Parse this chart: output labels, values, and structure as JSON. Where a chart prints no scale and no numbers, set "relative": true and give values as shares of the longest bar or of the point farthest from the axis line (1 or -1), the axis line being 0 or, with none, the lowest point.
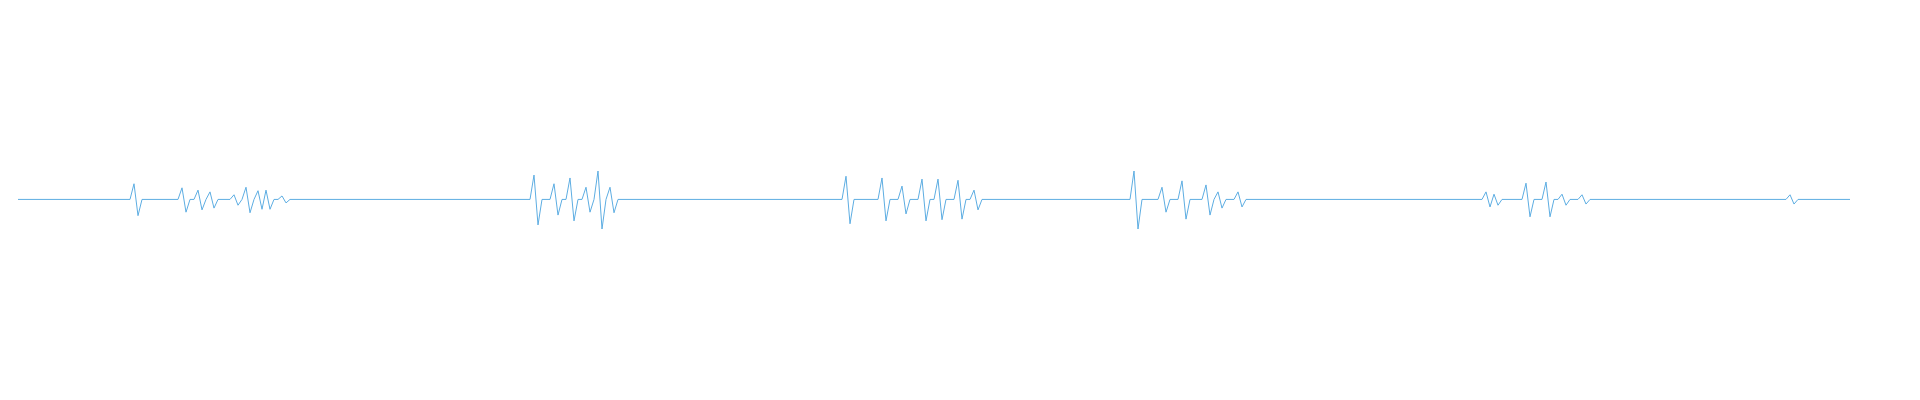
{
  "chart_data": {
    "type": "line",
    "relative": true,
    "marker": "none",
    "categories": [
      null,
      null,
      null,
      null,
      null,
      null,
      null,
      null,
      null,
      null,
      null,
      null,
      null,
      null,
      null,
      null,
      null,
      null,
      null,
      null,
      null,
      null,
      null,
      null,
      null,
      null,
      null,
      null,
      null,
      null,
      null,
      null,
      null,
      null,
      null,
      null,
      null,
      null,
      null,
      null,
      null,
      null,
      null,
      null,
      null,
      null,
      null,
      null,
      null,
      null,
      null,
      null,
      null,
      null,
      null,
      null,
      null,
      null,
      null,
      null,
      null,
      null,
      null,
      null,
      null,
      null,
      null,
      null,
      null,
      null,
      null,
      null,
      null,
      null,
      null,
      null,
      null,
      null,
      null,
      null,
      null,
      null,
      null,
      null,
      null,
      null,
      null,
      null,
      null,
      null,
      null,
      null,
      null,
      null,
      null,
      null,
      null,
      null,
      null,
      null,
      null,
      null,
      null,
      null,
      null,
      null,
      null,
      null,
      null,
      null,
      null,
      null,
      null,
      null,
      null,
      null,
      null,
      null,
      null,
      null,
      null,
      null,
      null,
      null,
      null,
      null,
      null,
      null,
      null,
      null,
      null,
      null,
      null,
      null,
      null,
      null,
      null,
      null,
      null,
      null,
      null,
      null,
      null,
      null,
      null,
      null,
      null,
      null,
      null,
      null,
      null,
      null,
      null,
      null,
      null,
      null,
      null,
      null,
      null,
      null,
      null,
      null,
      null,
      null,
      null,
      null,
      null,
      null,
      null,
      null,
      null,
      null,
      null,
      null,
      null,
      null,
      null,
      null,
      null,
      null,
      null,
      null,
      null,
      null,
      null,
      null,
      null,
      null,
      null,
      null,
      null,
      null,
      null,
      null,
      null,
      null,
      null,
      null,
      null,
      null,
      null,
      null,
      null,
      null,
      null,
      null,
      null,
      null,
      null,
      null,
      null,
      null,
      null,
      null,
      null,
      null,
      null,
      null,
      null,
      null,
      null,
      null,
      null,
      null,
      null,
      null,
      null,
      null,
      null,
      null,
      null,
      null,
      null,
      null,
      null,
      null,
      null,
      null,
      null,
      null,
      null,
      null,
      null,
      null,
      null,
      null,
      null,
      null,
      null,
      null,
      null,
      null,
      null,
      null,
      null,
      null,
      null,
      null,
      null,
      null,
      null,
      null,
      null,
      null,
      null,
      null,
      null,
      null,
      null,
      null,
      null,
      null,
      null,
      null,
      null,
      null,
      null,
      null,
      null,
      null,
      null,
      null,
      null,
      null,
      null,
      null,
      null,
      null,
      null,
      null,
      null,
      null,
      null,
      null,
      null,
      null,
      null,
      null,
      null,
      null,
      null,
      null,
      null,
      null,
      null,
      null,
      null,
      null,
      null,
      null,
      null,
      null,
      null,
      null,
      null,
      null,
      null,
      null,
      null,
      null,
      null,
      null,
      null,
      null,
      null,
      null,
      null,
      null,
      null,
      null,
      null,
      null,
      null,
      null,
      null,
      null,
      null,
      null,
      null,
      null,
      null,
      null,
      null,
      null,
      null,
      null,
      null,
      null,
      null,
      null,
      null,
      null,
      null,
      null,
      null,
      null,
      null,
      null,
      null,
      null,
      null,
      null,
      null,
      null,
      null,
      null,
      null,
      null,
      null,
      null,
      null,
      null,
      null,
      null,
      null,
      null,
      null,
      null,
      null,
      null,
      null,
      null,
      null,
      null,
      null,
      null,
      null,
      null,
      null,
      null,
      null,
      null,
      null,
      null,
      null,
      null,
      null,
      null,
      null,
      null,
      null,
      null,
      null,
      null,
      null,
      null,
      null,
      null,
      null,
      null,
      null,
      null,
      null,
      null,
      null,
      null,
      null,
      null,
      null,
      null,
      null,
      null,
      null,
      null,
      null,
      null,
      null,
      null,
      null,
      null,
      null,
      null,
      null,
      null,
      null,
      null,
      null,
      null,
      null,
      null,
      null,
      null,
      null,
      null,
      null,
      null,
      null,
      null,
      null,
      null,
      null,
      null,
      null,
      null,
      null,
      null,
      null,
      null,
      null
    ],
    "series": [
      {
        "color": "#5dade2",
        "values": [
          0.51,
          0.51,
          0.51,
          0.51,
          0.51,
          0.51,
          0.51,
          0.51,
          0.51,
          0.51,
          0.51,
          0.51,
          0.51,
          0.51,
          0.51,
          0.51,
          0.51,
          0.51,
          0.51,
          0.51,
          0.51,
          0.51,
          0.51,
          0.51,
          0.51,
          0.51,
          0.51,
          0.51,
          0.51,
          0.78,
          0.23,
          0.51,
          0.51,
          0.51,
          0.51,
          0.51,
          0.51,
          0.51,
          0.51,
          0.51,
          0.51,
          0.71,
          0.29,
          0.51,
          0.51,
          0.67,
          0.33,
          0.51,
          0.64,
          0.36,
          0.51,
          0.51,
          0.51,
          0.51,
          0.59,
          0.41,
          0.51,
          0.72,
          0.28,
          0.51,
          0.66,
          0.34,
          0.67,
          0.34,
          0.51,
          0.51,
          0.57,
          0.45,
          0.51,
          0.51,
          0.51,
          0.51,
          0.51,
          0.51,
          0.51,
          0.51,
          0.51,
          0.51,
          0.51,
          0.51,
          0.51,
          0.51,
          0.51,
          0.51,
          0.51,
          0.51,
          0.51,
          0.51,
          0.51,
          0.51,
          0.51,
          0.51,
          0.51,
          0.51,
          0.51,
          0.51,
          0.51,
          0.51,
          0.51,
          0.51,
          0.51,
          0.51,
          0.51,
          0.51,
          0.51,
          0.51,
          0.51,
          0.51,
          0.51,
          0.51,
          0.51,
          0.51,
          0.51,
          0.51,
          0.51,
          0.51,
          0.51,
          0.51,
          0.51,
          0.51,
          0.51,
          0.51,
          0.51,
          0.51,
          0.51,
          0.51,
          0.51,
          0.51,
          0.51,
          0.93,
          0.07,
          0.51,
          0.51,
          0.51,
          0.78,
          0.24,
          0.51,
          0.51,
          0.88,
          0.14,
          0.51,
          0.51,
          0.72,
          0.29,
          0.51,
          1,
          0,
          0.51,
          0.72,
          0.28,
          0.51,
          0.51,
          0.51,
          0.51,
          0.51,
          0.51,
          0.51,
          0.51,
          0.51,
          0.51,
          0.51,
          0.51,
          0.51,
          0.51,
          0.51,
          0.51,
          0.51,
          0.51,
          0.51,
          0.51,
          0.51,
          0.51,
          0.51,
          0.51,
          0.51,
          0.51,
          0.51,
          0.51,
          0.51,
          0.51,
          0.51,
          0.51,
          0.51,
          0.51,
          0.51,
          0.51,
          0.51,
          0.51,
          0.51,
          0.51,
          0.51,
          0.51,
          0.51,
          0.51,
          0.51,
          0.51,
          0.51,
          0.51,
          0.51,
          0.51,
          0.51,
          0.51,
          0.51,
          0.51,
          0.51,
          0.51,
          0.51,
          0.91,
          0.09,
          0.51,
          0.51,
          0.51,
          0.51,
          0.51,
          0.51,
          0.51,
          0.88,
          0.14,
          0.51,
          0.51,
          0.51,
          0.74,
          0.26,
          0.51,
          0.51,
          0.51,
          0.86,
          0.14,
          0.51,
          0.51,
          0.86,
          0.16,
          0.51,
          0.51,
          0.51,
          0.84,
          0.17,
          0.51,
          0.51,
          0.67,
          0.33,
          0.51,
          0.51,
          0.51,
          0.51,
          0.51,
          0.51,
          0.51,
          0.51,
          0.51,
          0.51,
          0.51,
          0.51,
          0.51,
          0.51,
          0.51,
          0.51,
          0.51,
          0.51,
          0.51,
          0.51,
          0.51,
          0.51,
          0.51,
          0.51,
          0.51,
          0.51,
          0.51,
          0.51,
          0.51,
          0.51,
          0.51,
          0.51,
          0.51,
          0.51,
          0.51,
          0.51,
          0.51,
          0.51,
          1,
          0,
          0.51,
          0.51,
          0.51,
          0.51,
          0.51,
          0.72,
          0.29,
          0.51,
          0.51,
          0.51,
          0.83,
          0.17,
          0.51,
          0.51,
          0.51,
          0.51,
          0.76,
          0.24,
          0.51,
          0.64,
          0.36,
          0.51,
          0.51,
          0.51,
          0.64,
          0.38,
          0.51,
          0.51,
          0.51,
          0.51,
          0.51,
          0.51,
          0.51,
          0.51,
          0.51,
          0.51,
          0.51,
          0.51,
          0.51,
          0.51,
          0.51,
          0.51,
          0.51,
          0.51,
          0.51,
          0.51,
          0.51,
          0.51,
          0.51,
          0.51,
          0.51,
          0.51,
          0.51,
          0.51,
          0.51,
          0.51,
          0.51,
          0.51,
          0.51,
          0.51,
          0.51,
          0.51,
          0.51,
          0.51,
          0.51,
          0.51,
          0.51,
          0.51,
          0.51,
          0.51,
          0.51,
          0.51,
          0.51,
          0.51,
          0.51,
          0.51,
          0.51,
          0.51,
          0.51,
          0.51,
          0.51,
          0.51,
          0.51,
          0.51,
          0.51,
          0.51,
          0.64,
          0.38,
          0.6,
          0.41,
          0.51,
          0.51,
          0.51,
          0.51,
          0.51,
          0.51,
          0.79,
          0.21,
          0.51,
          0.51,
          0.51,
          0.81,
          0.21,
          0.51,
          0.51,
          0.6,
          0.41,
          0.51,
          0.51,
          0.51,
          0.59,
          0.43,
          0.51,
          0.51,
          0.51,
          0.51,
          0.51,
          0.51,
          0.51,
          0.51,
          0.51,
          0.51,
          0.51,
          0.51,
          0.51,
          0.51,
          0.51,
          0.51,
          0.51,
          0.51,
          0.51,
          0.51,
          0.51,
          0.51,
          0.51,
          0.51,
          0.51,
          0.51,
          0.51,
          0.51,
          0.51,
          0.51,
          0.51,
          0.51,
          0.51,
          0.51,
          0.51,
          0.51,
          0.51,
          0.51,
          0.51,
          0.51,
          0.51,
          0.51,
          0.51,
          0.51,
          0.51,
          0.51,
          0.51,
          0.51,
          0.51,
          0.51,
          0.59,
          0.43,
          0.51,
          0.51,
          0.51,
          0.51,
          0.51,
          0.51,
          0.51,
          0.51,
          0.51,
          0.51,
          0.51,
          0.51,
          0.51,
          0.51
        ]
      }
    ]
  }
}
